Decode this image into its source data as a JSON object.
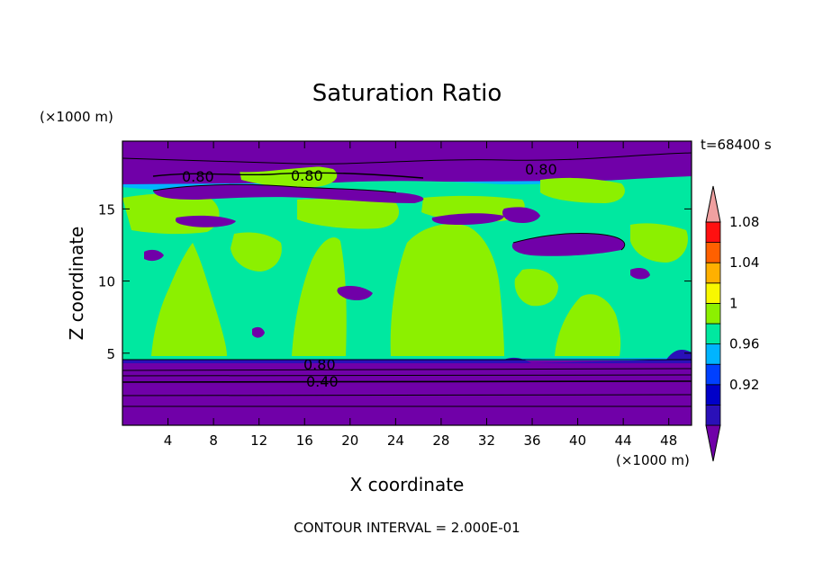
{
  "chart_data": {
    "type": "heatmap",
    "title": "Saturation Ratio",
    "xlabel": "X coordinate",
    "ylabel": "Z coordinate",
    "x_unit": "(×1000 m)",
    "y_unit": "(×1000 m)",
    "time_label": "t=68400 s",
    "footer": "CONTOUR INTERVAL = 2.000E-01",
    "xlim": [
      0,
      50
    ],
    "ylim": [
      0,
      19.7
    ],
    "xticks": [
      4,
      8,
      12,
      16,
      20,
      24,
      28,
      32,
      36,
      40,
      44,
      48
    ],
    "yticks": [
      5,
      10,
      15
    ],
    "colorbar": {
      "levels": [
        0.92,
        0.96,
        1,
        1.04,
        1.08
      ],
      "tick_labels": [
        "0.92",
        "0.96",
        "1",
        "1.04",
        "1.08"
      ],
      "colors": [
        "#7000a8",
        "#2a10b8",
        "#0000c8",
        "#0040ff",
        "#00b4ff",
        "#00e8a0",
        "#8cf000",
        "#f8f800",
        "#ffb000",
        "#ff6000",
        "#ff1010",
        "#f0a0a0"
      ],
      "extend": "both"
    },
    "contour_labels": [
      {
        "text": "0.80",
        "x": 7.0,
        "z": 17.6
      },
      {
        "text": "0.80",
        "x": 16.2,
        "z": 17.8
      },
      {
        "text": "0.80",
        "x": 37.0,
        "z": 18.0
      },
      {
        "text": "0.80",
        "x": 17.5,
        "z": 4.2
      },
      {
        "text": "0.40",
        "x": 17.5,
        "z": 3.0
      }
    ],
    "regions": {
      "lower_stable_layer": {
        "z_range": [
          0,
          4.6
        ],
        "value": "< 0.92"
      },
      "mid_layer": {
        "z_range": [
          4.6,
          16
        ],
        "values": [
          "0.96–1",
          "1–1.04"
        ]
      },
      "upper_layer": {
        "z_range": [
          16,
          19.7
        ],
        "value": "< 0.92 with patches up to 1.04"
      }
    }
  }
}
